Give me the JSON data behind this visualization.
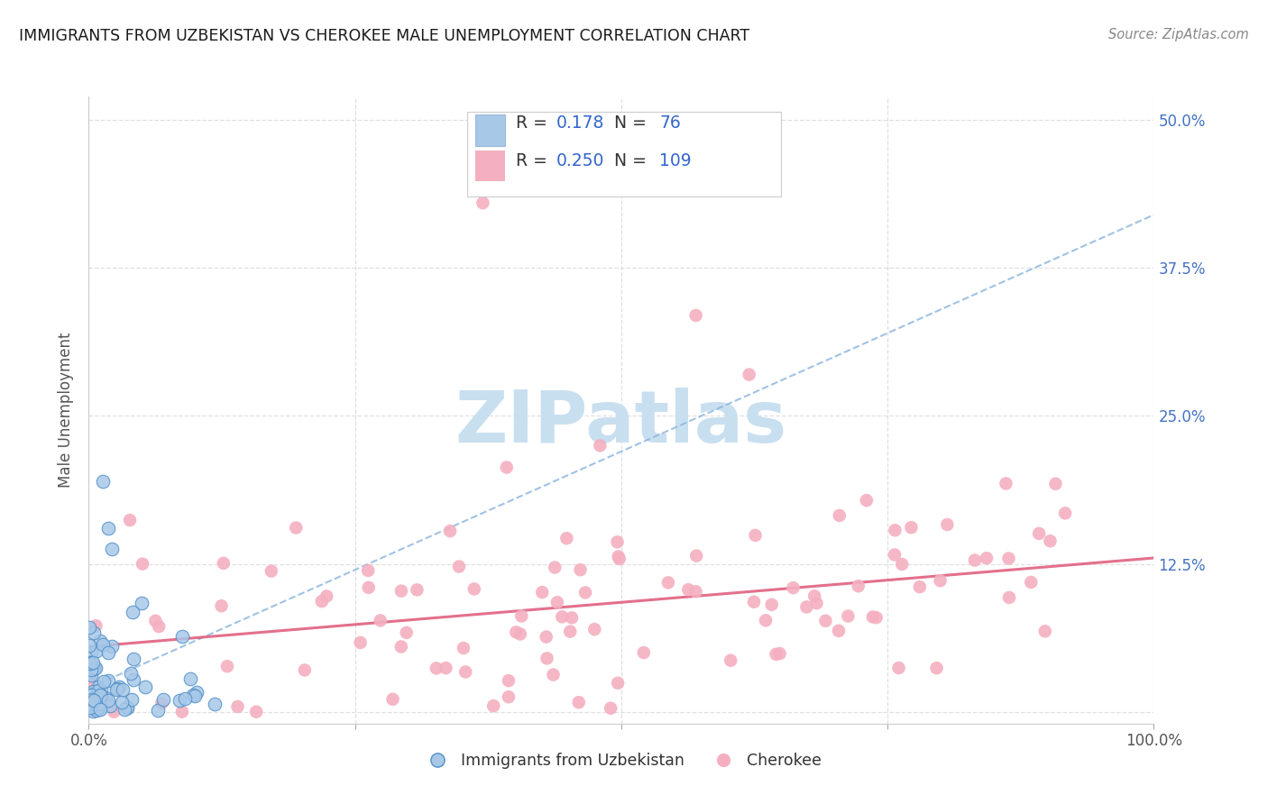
{
  "title": "IMMIGRANTS FROM UZBEKISTAN VS CHEROKEE MALE UNEMPLOYMENT CORRELATION CHART",
  "source": "Source: ZipAtlas.com",
  "ylabel": "Male Unemployment",
  "xlim": [
    0,
    1.0
  ],
  "ylim": [
    -0.01,
    0.52
  ],
  "ytick_vals": [
    0.0,
    0.125,
    0.25,
    0.375,
    0.5
  ],
  "ytick_labels_right": [
    "",
    "12.5%",
    "25.0%",
    "37.5%",
    "50.0%"
  ],
  "series1_color": "#a8c8e8",
  "series1_edge": "#5090c8",
  "series1_name": "Immigrants from Uzbekistan",
  "series1_R": "0.178",
  "series1_N": "76",
  "series2_color": "#f4b0c0",
  "series2_edge": "none",
  "series2_name": "Cherokee",
  "series2_R": "0.250",
  "series2_N": "109",
  "trend1_color": "#90b8e0",
  "trend2_color": "#e06080",
  "background_color": "#ffffff",
  "grid_color": "#d8d8d8",
  "title_color": "#1a1a1a",
  "source_color": "#888888",
  "ylabel_color": "#555555",
  "right_axis_color": "#4472c4",
  "watermark_text": "ZIPatlas",
  "watermark_color": "#c8dff0",
  "legend_text_dark": "#333333",
  "legend_value_color": "#3366cc",
  "seed1": 42,
  "seed2": 7
}
